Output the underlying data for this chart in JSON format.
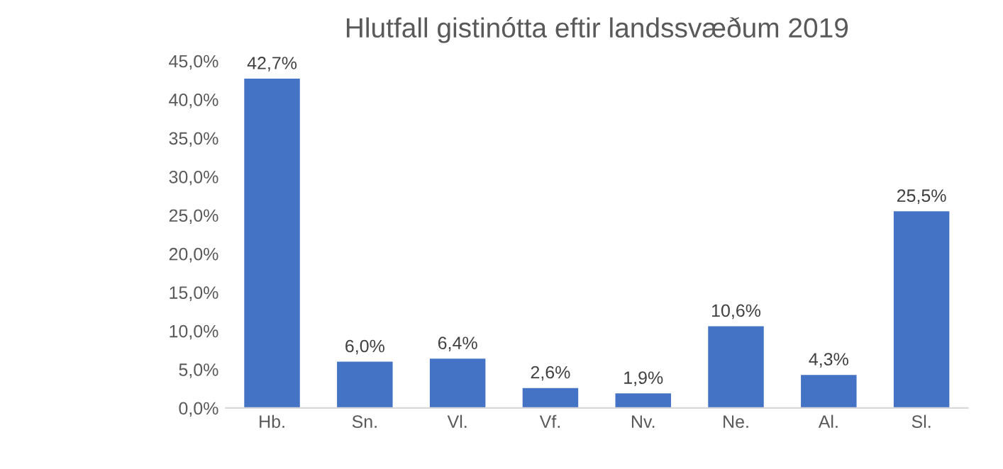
{
  "chart_data": {
    "type": "bar",
    "title": "Hlutfall gistinótta eftir landssvæðum 2019",
    "categories": [
      "Hb.",
      "Sn.",
      "Vl.",
      "Vf.",
      "Nv.",
      "Ne.",
      "Al.",
      "Sl."
    ],
    "values": [
      42.7,
      6.0,
      6.4,
      2.6,
      1.9,
      10.6,
      4.3,
      25.5
    ],
    "value_labels": [
      "42,7%",
      "6,0%",
      "6,4%",
      "2,6%",
      "1,9%",
      "10,6%",
      "4,3%",
      "25,5%"
    ],
    "color": "#4472c4",
    "ylim": [
      0,
      45
    ],
    "yticks": [
      {
        "value": 0,
        "label": "0,0%"
      },
      {
        "value": 5,
        "label": "5,0%"
      },
      {
        "value": 10,
        "label": "10,0%"
      },
      {
        "value": 15,
        "label": "15,0%"
      },
      {
        "value": 20,
        "label": "20,0%"
      },
      {
        "value": 25,
        "label": "25,0%"
      },
      {
        "value": 30,
        "label": "30,0%"
      },
      {
        "value": 35,
        "label": "35,0%"
      },
      {
        "value": 40,
        "label": "40,0%"
      },
      {
        "value": 45,
        "label": "45,0%"
      }
    ],
    "grid": false
  }
}
